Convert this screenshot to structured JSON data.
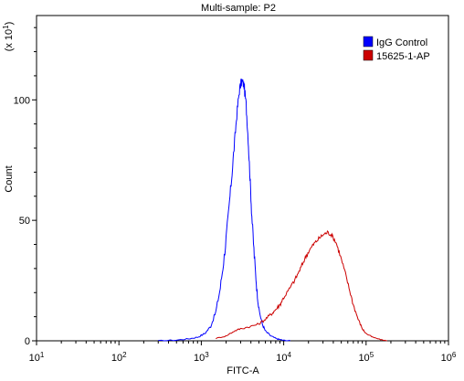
{
  "chart_data": {
    "type": "line",
    "title": "Multi-sample: P2",
    "xlabel": "FITC-A",
    "ylabel": "Count",
    "y_multiplier_label": "(x 10",
    "y_multiplier_exp": "1",
    "x_scale": "log",
    "xlim": [
      10,
      1000000
    ],
    "ylim": [
      0,
      135
    ],
    "x_ticks": [
      {
        "value": 10,
        "base": "10",
        "exp": "1"
      },
      {
        "value": 100,
        "base": "10",
        "exp": "2"
      },
      {
        "value": 1000,
        "base": "10",
        "exp": "3"
      },
      {
        "value": 10000,
        "base": "10",
        "exp": "4"
      },
      {
        "value": 100000,
        "base": "10",
        "exp": "5"
      },
      {
        "value": 1000000,
        "base": "10",
        "exp": "6"
      }
    ],
    "y_ticks": [
      {
        "value": 0,
        "label": "0"
      },
      {
        "value": 50,
        "label": "50"
      },
      {
        "value": 100,
        "label": "100"
      }
    ],
    "grid": false,
    "legend_position": "top-right",
    "series": [
      {
        "name": "IgG Control",
        "color": "#0000ff",
        "x": [
          300,
          500,
          700,
          900,
          1100,
          1300,
          1500,
          1700,
          1900,
          2100,
          2300,
          2500,
          2700,
          2900,
          3100,
          3300,
          3500,
          3700,
          3900,
          4100,
          4400,
          4700,
          5000,
          5500,
          6000,
          7000,
          8000,
          9000,
          10000,
          12000
        ],
        "y": [
          0,
          0.3,
          0.8,
          1.5,
          3,
          6,
          12,
          22,
          35,
          50,
          65,
          80,
          94,
          104,
          108,
          106,
          98,
          84,
          68,
          52,
          35,
          22,
          13,
          7,
          4,
          2,
          1,
          0.5,
          0.2,
          0
        ]
      },
      {
        "name": "15625-1-AP",
        "color": "#cc0000",
        "x": [
          1500,
          2000,
          2500,
          3000,
          4000,
          5000,
          6000,
          7000,
          8000,
          9000,
          10000,
          12000,
          14000,
          16000,
          18000,
          20000,
          23000,
          26000,
          30000,
          34000,
          38000,
          43000,
          48000,
          55000,
          62000,
          70000,
          80000,
          90000,
          100000,
          120000,
          150000,
          180000
        ],
        "y": [
          1,
          2,
          4,
          5,
          6,
          7,
          9,
          11,
          13,
          15,
          18,
          22,
          26,
          30,
          34,
          37,
          40,
          42,
          44,
          45,
          44,
          41,
          36,
          29,
          22,
          15,
          9,
          5,
          3,
          1.5,
          0.5,
          0
        ]
      }
    ]
  }
}
